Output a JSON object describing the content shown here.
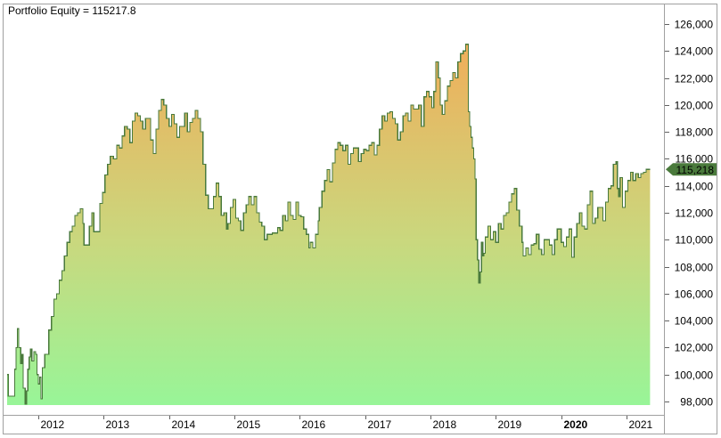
{
  "title": "Portfolio Equity = 115217.8",
  "last_value_label": "115,218",
  "colors": {
    "line": "#4a7a3c",
    "fill_top": "#f0ae5a",
    "fill_mid": "#c9d87e",
    "fill_bottom": "#98f598",
    "badge": "#4a7a3c",
    "axis": "#a0a0a0",
    "frame": "#a0a0a0"
  },
  "chart_data": {
    "type": "area",
    "title": "Portfolio Equity = 115217.8",
    "xlabel": "",
    "ylabel": "",
    "ylim": [
      97500,
      127000
    ],
    "xlim": [
      2011.5,
      2021.55
    ],
    "grid": false,
    "legend": "none",
    "y_ticks": [
      98000,
      100000,
      102000,
      104000,
      106000,
      108000,
      110000,
      112000,
      114000,
      116000,
      118000,
      120000,
      122000,
      124000,
      126000
    ],
    "y_tick_labels": [
      "98,000",
      "100,000",
      "102,000",
      "104,000",
      "106,000",
      "108,000",
      "110,000",
      "112,000",
      "114,000",
      "116,000",
      "118,000",
      "120,000",
      "122,000",
      "124,000",
      "126,000"
    ],
    "x_ticks": [
      2012,
      2013,
      2014,
      2015,
      2016,
      2017,
      2018,
      2019,
      2020,
      2021
    ],
    "x_tick_labels": [
      "2012",
      "2013",
      "2014",
      "2015",
      "2016",
      "2017",
      "2018",
      "2019",
      "2020",
      "2021"
    ],
    "bold_x_tick": "2020",
    "last_value": 115217.8,
    "series": [
      {
        "name": "Portfolio Equity",
        "points": [
          [
            2011.52,
            100000
          ],
          [
            2011.54,
            98400
          ],
          [
            2011.62,
            98400
          ],
          [
            2011.64,
            100400
          ],
          [
            2011.66,
            102000
          ],
          [
            2011.68,
            103400
          ],
          [
            2011.7,
            102000
          ],
          [
            2011.73,
            100800
          ],
          [
            2011.75,
            101500
          ],
          [
            2011.77,
            99000
          ],
          [
            2011.8,
            97800
          ],
          [
            2011.82,
            98800
          ],
          [
            2011.84,
            100400
          ],
          [
            2011.86,
            101300
          ],
          [
            2011.88,
            101900
          ],
          [
            2011.9,
            101000
          ],
          [
            2011.93,
            101700
          ],
          [
            2011.96,
            101500
          ],
          [
            2011.98,
            100000
          ],
          [
            2012.0,
            99300
          ],
          [
            2012.02,
            99800
          ],
          [
            2012.04,
            98200
          ],
          [
            2012.06,
            100500
          ],
          [
            2012.1,
            101500
          ],
          [
            2012.13,
            101500
          ],
          [
            2012.16,
            103300
          ],
          [
            2012.2,
            104300
          ],
          [
            2012.24,
            105600
          ],
          [
            2012.28,
            106000
          ],
          [
            2012.32,
            107000
          ],
          [
            2012.36,
            107700
          ],
          [
            2012.4,
            108800
          ],
          [
            2012.44,
            109800
          ],
          [
            2012.48,
            110600
          ],
          [
            2012.52,
            111000
          ],
          [
            2012.56,
            111800
          ],
          [
            2012.6,
            112000
          ],
          [
            2012.64,
            112300
          ],
          [
            2012.68,
            111200
          ],
          [
            2012.7,
            109600
          ],
          [
            2012.74,
            109600
          ],
          [
            2012.78,
            111000
          ],
          [
            2012.82,
            112000
          ],
          [
            2012.85,
            110600
          ],
          [
            2012.9,
            110600
          ],
          [
            2012.94,
            112700
          ],
          [
            2012.98,
            113500
          ],
          [
            2013.02,
            114800
          ],
          [
            2013.06,
            115600
          ],
          [
            2013.1,
            116200
          ],
          [
            2013.15,
            116000
          ],
          [
            2013.2,
            117000
          ],
          [
            2013.24,
            116800
          ],
          [
            2013.28,
            117700
          ],
          [
            2013.32,
            118400
          ],
          [
            2013.36,
            118200
          ],
          [
            2013.4,
            117200
          ],
          [
            2013.44,
            118800
          ],
          [
            2013.48,
            119400
          ],
          [
            2013.52,
            119200
          ],
          [
            2013.56,
            118800
          ],
          [
            2013.6,
            118200
          ],
          [
            2013.64,
            119000
          ],
          [
            2013.68,
            119000
          ],
          [
            2013.72,
            117400
          ],
          [
            2013.76,
            116400
          ],
          [
            2013.8,
            118200
          ],
          [
            2013.84,
            119600
          ],
          [
            2013.88,
            120400
          ],
          [
            2013.92,
            120000
          ],
          [
            2013.96,
            119000
          ],
          [
            2014.0,
            118400
          ],
          [
            2014.04,
            119300
          ],
          [
            2014.08,
            118600
          ],
          [
            2014.12,
            117600
          ],
          [
            2014.16,
            118400
          ],
          [
            2014.2,
            118400
          ],
          [
            2014.24,
            119400
          ],
          [
            2014.28,
            118000
          ],
          [
            2014.32,
            118700
          ],
          [
            2014.36,
            119000
          ],
          [
            2014.4,
            119600
          ],
          [
            2014.44,
            119000
          ],
          [
            2014.48,
            118000
          ],
          [
            2014.52,
            115600
          ],
          [
            2014.56,
            113300
          ],
          [
            2014.6,
            112300
          ],
          [
            2014.64,
            112300
          ],
          [
            2014.68,
            113200
          ],
          [
            2014.72,
            114200
          ],
          [
            2014.76,
            113200
          ],
          [
            2014.8,
            111800
          ],
          [
            2014.84,
            112000
          ],
          [
            2014.88,
            110800
          ],
          [
            2014.9,
            111200
          ],
          [
            2014.94,
            112400
          ],
          [
            2014.98,
            113000
          ],
          [
            2015.02,
            111600
          ],
          [
            2015.06,
            111400
          ],
          [
            2015.1,
            110700
          ],
          [
            2015.14,
            112000
          ],
          [
            2015.18,
            112600
          ],
          [
            2015.22,
            113200
          ],
          [
            2015.26,
            112600
          ],
          [
            2015.3,
            113200
          ],
          [
            2015.34,
            112000
          ],
          [
            2015.38,
            111300
          ],
          [
            2015.42,
            111000
          ],
          [
            2015.46,
            110000
          ],
          [
            2015.5,
            110400
          ],
          [
            2015.54,
            110400
          ],
          [
            2015.58,
            110500
          ],
          [
            2015.62,
            110500
          ],
          [
            2015.66,
            110900
          ],
          [
            2015.7,
            110700
          ],
          [
            2015.74,
            111800
          ],
          [
            2015.78,
            111400
          ],
          [
            2015.82,
            112800
          ],
          [
            2015.86,
            111800
          ],
          [
            2015.9,
            111500
          ],
          [
            2015.94,
            112800
          ],
          [
            2015.98,
            111800
          ],
          [
            2016.02,
            111700
          ],
          [
            2016.06,
            110800
          ],
          [
            2016.1,
            110400
          ],
          [
            2016.14,
            109400
          ],
          [
            2016.16,
            109800
          ],
          [
            2016.2,
            109400
          ],
          [
            2016.24,
            110400
          ],
          [
            2016.28,
            111400
          ],
          [
            2016.3,
            112400
          ],
          [
            2016.34,
            113600
          ],
          [
            2016.38,
            114400
          ],
          [
            2016.42,
            115200
          ],
          [
            2016.46,
            114300
          ],
          [
            2016.5,
            115700
          ],
          [
            2016.54,
            116700
          ],
          [
            2016.58,
            117200
          ],
          [
            2016.62,
            117000
          ],
          [
            2016.66,
            116600
          ],
          [
            2016.7,
            117000
          ],
          [
            2016.74,
            115600
          ],
          [
            2016.78,
            116400
          ],
          [
            2016.82,
            116800
          ],
          [
            2016.86,
            116800
          ],
          [
            2016.9,
            115800
          ],
          [
            2016.94,
            116400
          ],
          [
            2016.98,
            116700
          ],
          [
            2017.02,
            116600
          ],
          [
            2017.06,
            117000
          ],
          [
            2017.1,
            117200
          ],
          [
            2017.14,
            116300
          ],
          [
            2017.18,
            117000
          ],
          [
            2017.22,
            118200
          ],
          [
            2017.26,
            119200
          ],
          [
            2017.3,
            118800
          ],
          [
            2017.34,
            119400
          ],
          [
            2017.38,
            119500
          ],
          [
            2017.42,
            119000
          ],
          [
            2017.46,
            118600
          ],
          [
            2017.5,
            117400
          ],
          [
            2017.54,
            118000
          ],
          [
            2017.58,
            119200
          ],
          [
            2017.62,
            119400
          ],
          [
            2017.66,
            118800
          ],
          [
            2017.7,
            120000
          ],
          [
            2017.74,
            119700
          ],
          [
            2017.78,
            119700
          ],
          [
            2017.82,
            120000
          ],
          [
            2017.86,
            118400
          ],
          [
            2017.9,
            120600
          ],
          [
            2017.94,
            121000
          ],
          [
            2017.98,
            120600
          ],
          [
            2018.02,
            119800
          ],
          [
            2018.05,
            121000
          ],
          [
            2018.08,
            123200
          ],
          [
            2018.12,
            122000
          ],
          [
            2018.15,
            120000
          ],
          [
            2018.18,
            119300
          ],
          [
            2018.22,
            120300
          ],
          [
            2018.26,
            121400
          ],
          [
            2018.3,
            121800
          ],
          [
            2018.34,
            122400
          ],
          [
            2018.38,
            122000
          ],
          [
            2018.42,
            123200
          ],
          [
            2018.46,
            123800
          ],
          [
            2018.5,
            124000
          ],
          [
            2018.54,
            124500
          ],
          [
            2018.58,
            119500
          ],
          [
            2018.6,
            118400
          ],
          [
            2018.62,
            117600
          ],
          [
            2018.64,
            116800
          ],
          [
            2018.66,
            116000
          ],
          [
            2018.68,
            114500
          ],
          [
            2018.7,
            110000
          ],
          [
            2018.72,
            108500
          ],
          [
            2018.74,
            106800
          ],
          [
            2018.76,
            107600
          ],
          [
            2018.78,
            109800
          ],
          [
            2018.8,
            108800
          ],
          [
            2018.82,
            109000
          ],
          [
            2018.84,
            110200
          ],
          [
            2018.88,
            111000
          ],
          [
            2018.92,
            110000
          ],
          [
            2018.96,
            110600
          ],
          [
            2019.0,
            109800
          ],
          [
            2019.04,
            111200
          ],
          [
            2019.08,
            110800
          ],
          [
            2019.12,
            111800
          ],
          [
            2019.16,
            112000
          ],
          [
            2019.2,
            112800
          ],
          [
            2019.24,
            113400
          ],
          [
            2019.28,
            113800
          ],
          [
            2019.32,
            112200
          ],
          [
            2019.36,
            111000
          ],
          [
            2019.4,
            109800
          ],
          [
            2019.42,
            108800
          ],
          [
            2019.46,
            109400
          ],
          [
            2019.5,
            108900
          ],
          [
            2019.54,
            109600
          ],
          [
            2019.58,
            109700
          ],
          [
            2019.62,
            110400
          ],
          [
            2019.66,
            109300
          ],
          [
            2019.7,
            108900
          ],
          [
            2019.74,
            110000
          ],
          [
            2019.78,
            110000
          ],
          [
            2019.82,
            109600
          ],
          [
            2019.86,
            108900
          ],
          [
            2019.9,
            110000
          ],
          [
            2019.94,
            110800
          ],
          [
            2020.0,
            109800
          ],
          [
            2020.04,
            109500
          ],
          [
            2020.08,
            110200
          ],
          [
            2020.12,
            110800
          ],
          [
            2020.16,
            108700
          ],
          [
            2020.2,
            110200
          ],
          [
            2020.24,
            111200
          ],
          [
            2020.28,
            112000
          ],
          [
            2020.32,
            111000
          ],
          [
            2020.36,
            110800
          ],
          [
            2020.4,
            112600
          ],
          [
            2020.44,
            113600
          ],
          [
            2020.48,
            111200
          ],
          [
            2020.52,
            111600
          ],
          [
            2020.56,
            112400
          ],
          [
            2020.6,
            112400
          ],
          [
            2020.64,
            111400
          ],
          [
            2020.68,
            112800
          ],
          [
            2020.72,
            113800
          ],
          [
            2020.76,
            114000
          ],
          [
            2020.8,
            115600
          ],
          [
            2020.84,
            115800
          ],
          [
            2020.86,
            113800
          ],
          [
            2020.88,
            113200
          ],
          [
            2020.9,
            114600
          ],
          [
            2020.94,
            112400
          ],
          [
            2020.98,
            113600
          ],
          [
            2021.02,
            114400
          ],
          [
            2021.06,
            115000
          ],
          [
            2021.1,
            114400
          ],
          [
            2021.14,
            114900
          ],
          [
            2021.18,
            114600
          ],
          [
            2021.22,
            114900
          ],
          [
            2021.26,
            115000
          ],
          [
            2021.3,
            115218
          ],
          [
            2021.36,
            115218
          ]
        ]
      }
    ]
  }
}
